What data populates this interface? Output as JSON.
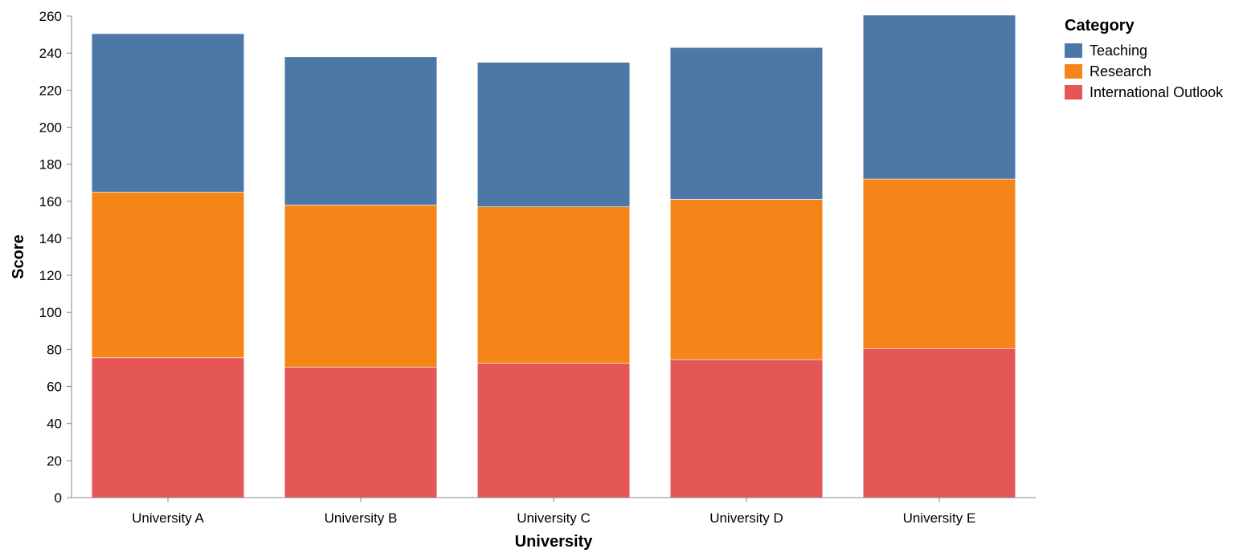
{
  "chart_data": {
    "type": "bar",
    "stacked": true,
    "title": "",
    "xlabel": "University",
    "ylabel": "Score",
    "ylim": [
      0,
      260
    ],
    "yticks": [
      0,
      20,
      40,
      60,
      80,
      100,
      120,
      140,
      160,
      180,
      200,
      220,
      240,
      260
    ],
    "grid": false,
    "legend": {
      "title": "Category",
      "placement": "top-right"
    },
    "categories": [
      "University A",
      "University B",
      "University C",
      "University D",
      "University E"
    ],
    "series": [
      {
        "name": "International Outlook",
        "color": "#e45756",
        "values": [
          75.5,
          70.5,
          72.5,
          74.5,
          80.5
        ]
      },
      {
        "name": "Research",
        "color": "#f58518",
        "values": [
          89.5,
          87.5,
          84.5,
          86.5,
          91.5
        ]
      },
      {
        "name": "Teaching",
        "color": "#4c78a8",
        "values": [
          85.5,
          80,
          78,
          82,
          88.5
        ]
      }
    ],
    "legend_order": [
      "Teaching",
      "Research",
      "International Outlook"
    ]
  }
}
